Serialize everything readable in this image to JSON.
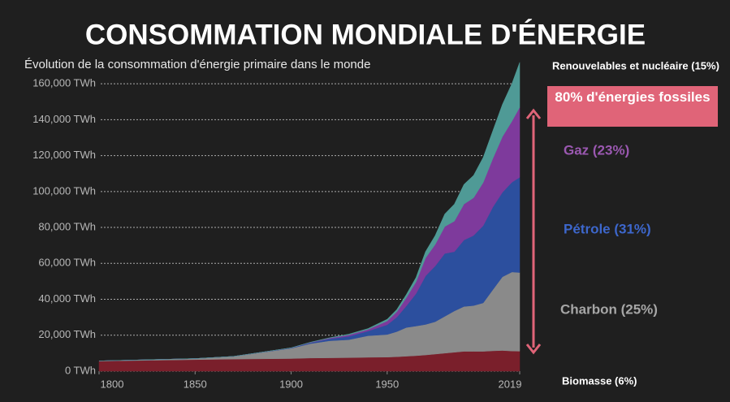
{
  "chart_data": {
    "type": "stacked_area",
    "title": "CONSOMMATION MONDIALE D'ÉNERGIE",
    "subtitle": "Évolution de la consommation d'énergie primaire dans le monde",
    "annotation": "80% d'énergies fossiles",
    "x": [
      1800,
      1850,
      1870,
      1900,
      1910,
      1920,
      1930,
      1940,
      1950,
      1955,
      1960,
      1965,
      1970,
      1975,
      1980,
      1985,
      1990,
      1995,
      2000,
      2005,
      2010,
      2015,
      2019
    ],
    "series": [
      {
        "name": "Biomasse (6%)",
        "color": "#7a1f2b",
        "values": [
          5600,
          6400,
          6700,
          7000,
          7300,
          7400,
          7500,
          7700,
          7800,
          8000,
          8300,
          8600,
          9000,
          9500,
          10000,
          10500,
          11000,
          11000,
          11000,
          11300,
          11500,
          11200,
          11100
        ]
      },
      {
        "name": "Charbon (25%)",
        "color": "#8a8a8a",
        "values": [
          100,
          600,
          1500,
          5700,
          8000,
          9500,
          10000,
          12000,
          12600,
          14000,
          16000,
          16500,
          17000,
          18000,
          20500,
          23000,
          25000,
          25500,
          27000,
          34000,
          41000,
          44000,
          43800
        ]
      },
      {
        "name": "Pétrole (31%)",
        "color": "#2c4f9e",
        "values": [
          0,
          0,
          10,
          200,
          500,
          1100,
          1900,
          2600,
          5400,
          8000,
          12000,
          18000,
          27000,
          31000,
          35000,
          33000,
          37000,
          39000,
          43000,
          46000,
          47000,
          50000,
          53000
        ]
      },
      {
        "name": "Gaz (23%)",
        "color": "#7e3a9c",
        "values": [
          0,
          0,
          0,
          60,
          200,
          400,
          800,
          900,
          2100,
          3000,
          4600,
          6500,
          10000,
          12000,
          15000,
          17000,
          20000,
          21000,
          24000,
          27000,
          31000,
          34000,
          39000
        ]
      },
      {
        "name": "Renouvelables et nucléaire (15%)",
        "color": "#4f9a96",
        "values": [
          0,
          0,
          0,
          50,
          100,
          200,
          400,
          500,
          1000,
          1300,
          1800,
          2500,
          3600,
          5000,
          7000,
          9500,
          11000,
          12500,
          14000,
          15500,
          18000,
          21000,
          25000
        ]
      }
    ],
    "xlim": [
      1800,
      2019
    ],
    "xticks": [
      1800,
      1850,
      1900,
      1950,
      2019
    ],
    "ylim": [
      0,
      170000
    ],
    "yticks": [
      {
        "value": 0,
        "label": "0 TWh"
      },
      {
        "value": 20000,
        "label": "20,000 TWh"
      },
      {
        "value": 40000,
        "label": "40,000 TWh"
      },
      {
        "value": 60000,
        "label": "60,000 TWh"
      },
      {
        "value": 80000,
        "label": "80,000 TWh"
      },
      {
        "value": 100000,
        "label": "100,000 TWh"
      },
      {
        "value": 120000,
        "label": "120,000 TWh"
      },
      {
        "value": 140000,
        "label": "140,000 TWh"
      },
      {
        "value": 160000,
        "label": "160,000 TWh"
      }
    ],
    "grid": true
  }
}
